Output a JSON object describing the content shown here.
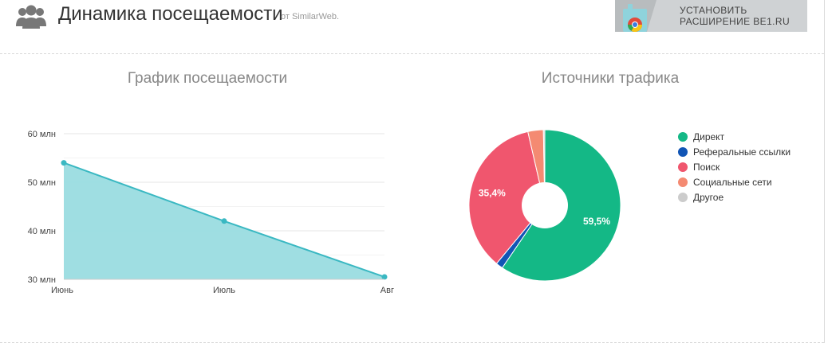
{
  "header": {
    "title": "Динамика посещаемости",
    "subtitle": "от SimilarWeb."
  },
  "banner": {
    "line1": "УСТАНОВИТЬ",
    "line2": "РАСШИРЕНИЕ BE1.RU",
    "icon": "chrome-icon"
  },
  "header_icon": "users-icon",
  "chart_data": [
    {
      "type": "area",
      "title": "График посещаемости",
      "categories": [
        "Июнь",
        "Июль",
        "Авг"
      ],
      "series": [
        {
          "values": [
            54,
            42,
            30.5
          ],
          "color": "#3ab8c2",
          "fill": "#9adce0"
        }
      ],
      "yticks": [
        30,
        40,
        50,
        60
      ],
      "ytick_labels": [
        "30 млн",
        "40 млн",
        "50 млн",
        "60 млн"
      ],
      "ylim": [
        30,
        60
      ],
      "grid": true
    },
    {
      "type": "pie",
      "title": "Источники трафика",
      "slices": [
        {
          "label": "Директ",
          "value": 59.5,
          "color": "#14b886",
          "display": "59,5%"
        },
        {
          "label": "Реферальные ссылки",
          "value": 1.5,
          "color": "#1155b5",
          "display": ""
        },
        {
          "label": "Поиск",
          "value": 35.4,
          "color": "#f0566e",
          "display": "35,4%"
        },
        {
          "label": "Социальные сети",
          "value": 3.3,
          "color": "#f48a72",
          "display": ""
        },
        {
          "label": "Другое",
          "value": 0.3,
          "color": "#cccccc",
          "display": ""
        }
      ],
      "legend_position": "right"
    }
  ]
}
